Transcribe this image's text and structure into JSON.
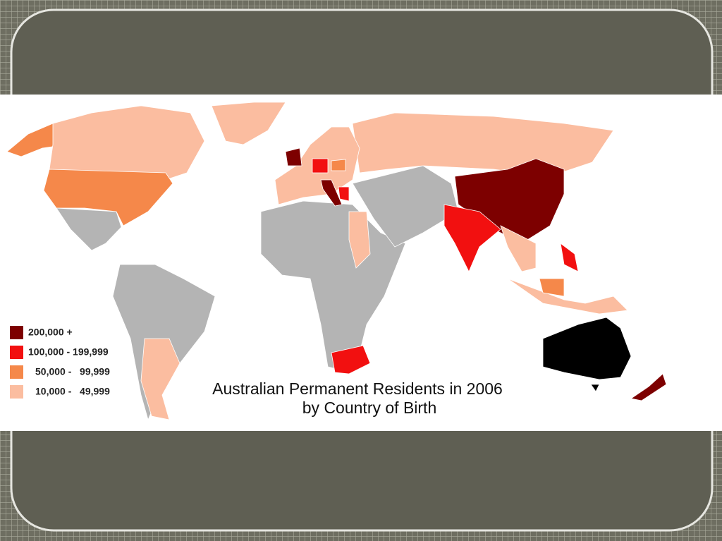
{
  "map": {
    "title_lines": [
      "Australian Permanent Residents in 2006",
      "by Country of Birth"
    ],
    "legend": [
      {
        "label": "200,000 +",
        "color": "#7d0000"
      },
      {
        "label": "100,000 - 199,999",
        "color": "#f21010"
      },
      {
        "label": "50,000 -   99,999",
        "color": "#f5884a"
      },
      {
        "label": "10,000 -   49,999",
        "color": "#fbbda0"
      }
    ],
    "origin_color": "#000000",
    "no_data_color": "#b4b4b4"
  }
}
